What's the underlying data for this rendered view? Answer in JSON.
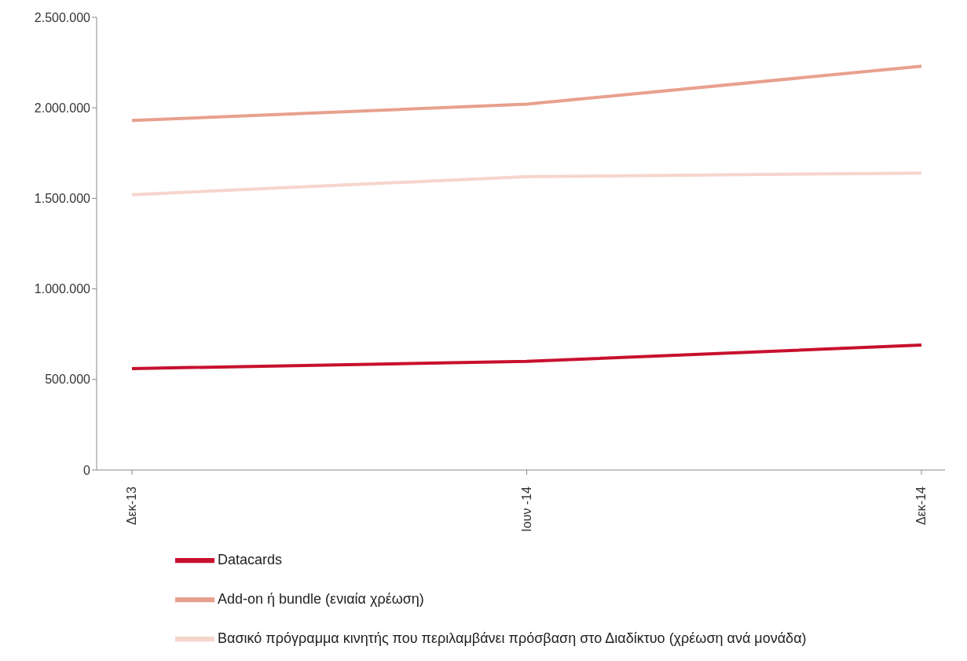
{
  "chart_data": {
    "type": "line",
    "categories": [
      "Δεκ-13",
      "Ιουν -14",
      "Δεκ-14"
    ],
    "series": [
      {
        "name": "Datacards",
        "color": "#c8102e",
        "values": [
          560000,
          600000,
          690000
        ]
      },
      {
        "name": "Add-on ή bundle (ενιαία χρέωση)",
        "color": "#e8a08e",
        "values": [
          1930000,
          2020000,
          2230000
        ]
      },
      {
        "name": "Βασικό πρόγραμμα κινητής που περιλαμβάνει πρόσβαση στο Διαδίκτυο (χρέωση ανά μονάδα)",
        "color": "#f6d5cc",
        "values": [
          1520000,
          1620000,
          1640000
        ]
      }
    ],
    "ylim": [
      0,
      2500000
    ],
    "yticks": [
      {
        "value": 0,
        "label": "0"
      },
      {
        "value": 500000,
        "label": "500.000"
      },
      {
        "value": 1000000,
        "label": "1.000.000"
      },
      {
        "value": 1500000,
        "label": "1.500.000"
      },
      {
        "value": 2000000,
        "label": "2.000.000"
      },
      {
        "value": 2500000,
        "label": "2.500.000"
      }
    ],
    "grid": false,
    "legend": "bottom",
    "marker": "none",
    "line_style": "solid"
  }
}
